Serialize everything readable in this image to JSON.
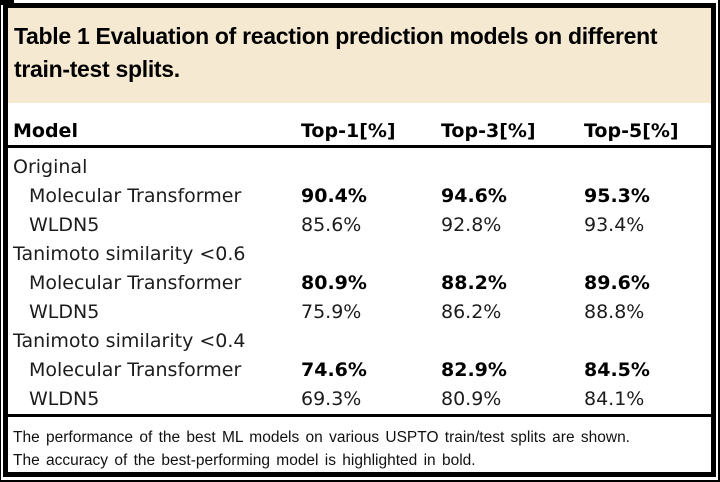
{
  "title": "Table 1 Evaluation of reaction prediction models on different train-test splits.",
  "table": {
    "columns": [
      "Model",
      "Top-1[%]",
      "Top-3[%]",
      "Top-5[%]"
    ],
    "groups": [
      {
        "label": "Original",
        "rows": [
          {
            "model": "Molecular Transformer",
            "top1": "90.4%",
            "top3": "94.6%",
            "top5": "95.3%",
            "highlight": true
          },
          {
            "model": "WLDN5",
            "top1": "85.6%",
            "top3": "92.8%",
            "top5": "93.4%",
            "highlight": false
          }
        ]
      },
      {
        "label": "Tanimoto similarity <0.6",
        "rows": [
          {
            "model": "Molecular Transformer",
            "top1": "80.9%",
            "top3": "88.2%",
            "top5": "89.6%",
            "highlight": true
          },
          {
            "model": "WLDN5",
            "top1": "75.9%",
            "top3": "86.2%",
            "top5": "88.8%",
            "highlight": false
          }
        ]
      },
      {
        "label": "Tanimoto similarity <0.4",
        "rows": [
          {
            "model": "Molecular Transformer",
            "top1": "74.6%",
            "top3": "82.9%",
            "top5": "84.5%",
            "highlight": true
          },
          {
            "model": "WLDN5",
            "top1": "69.3%",
            "top3": "80.9%",
            "top5": "84.1%",
            "highlight": false
          }
        ]
      }
    ],
    "footnote": [
      "The performance of the best ML models on various USPTO train/test splits are shown.",
      "The accuracy of the best-performing model is highlighted in bold."
    ]
  },
  "colors": {
    "title_band_bg": "#f6e9d2",
    "border": "#000000",
    "text": "#1c1c1c"
  }
}
